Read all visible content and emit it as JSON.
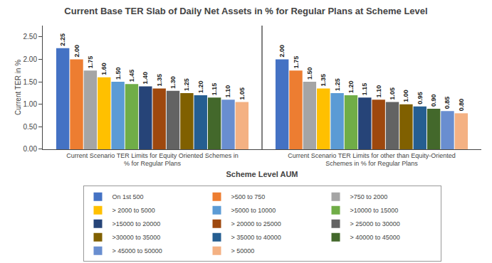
{
  "chart_data": {
    "type": "bar",
    "title": "Current Base TER Slab of Daily Net Assets in % for Regular Plans at Scheme Level",
    "xlabel": "Scheme Level AUM",
    "ylabel": "Current TER in %",
    "categories": [
      "Current Scenario TER Limits for Equity Oriented Schemes in\n% for Regular Plans",
      "Current Scenario TER Limits for other than Equity-Oriented\nSchemes in % for Regular Plans"
    ],
    "series": [
      {
        "name": "On 1st 500",
        "color": "#4472C4",
        "values": [
          2.25,
          2.0
        ],
        "value_labels": [
          "2.25",
          "2.00"
        ]
      },
      {
        "name": ">500 to 750",
        "color": "#ED7D31",
        "values": [
          2.0,
          1.75
        ],
        "value_labels": [
          "2.00",
          "1.75"
        ]
      },
      {
        "name": ">750 to 2000",
        "color": "#A5A5A5",
        "values": [
          1.75,
          1.5
        ],
        "value_labels": [
          "1.75",
          "1.50"
        ]
      },
      {
        "name": "> 2000 to 5000",
        "color": "#FFC000",
        "values": [
          1.6,
          1.35
        ],
        "value_labels": [
          "1.60",
          "1.35"
        ]
      },
      {
        "name": ">5000 to 10000",
        "color": "#5B9BD5",
        "values": [
          1.5,
          1.25
        ],
        "value_labels": [
          "1.50",
          "1.25"
        ]
      },
      {
        "name": ">10000 to 15000",
        "color": "#70AD47",
        "values": [
          1.45,
          1.2
        ],
        "value_labels": [
          "1.45",
          "1.20"
        ]
      },
      {
        "name": ">15000 to 20000",
        "color": "#264478",
        "values": [
          1.4,
          1.15
        ],
        "value_labels": [
          "1.40",
          "1.15"
        ]
      },
      {
        "name": "> 20000 to 25000",
        "color": "#9E480E",
        "values": [
          1.35,
          1.1
        ],
        "value_labels": [
          "1.35",
          "1.10"
        ]
      },
      {
        "name": "> 25000 to 30000",
        "color": "#636363",
        "values": [
          1.3,
          1.05
        ],
        "value_labels": [
          "1.30",
          "1.05"
        ]
      },
      {
        "name": ">30000 to 35000",
        "color": "#806000",
        "values": [
          1.25,
          1.0
        ],
        "value_labels": [
          "1.25",
          "1.00"
        ]
      },
      {
        "name": "> 35000 to 40000",
        "color": "#255E91",
        "values": [
          1.2,
          0.95
        ],
        "value_labels": [
          "1.20",
          "0.95"
        ]
      },
      {
        "name": "> 40000 to 45000",
        "color": "#43682B",
        "values": [
          1.15,
          0.9
        ],
        "value_labels": [
          "1.15",
          "0.90"
        ]
      },
      {
        "name": "> 45000 to 50000",
        "color": "#698ED0",
        "values": [
          1.1,
          0.85
        ],
        "value_labels": [
          "1.10",
          "0.85"
        ]
      },
      {
        "name": "> 50000",
        "color": "#F4B183",
        "values": [
          1.05,
          0.8
        ],
        "value_labels": [
          "1.05",
          "0.80"
        ]
      }
    ],
    "ylim": [
      0,
      2.75
    ],
    "yticks": [
      {
        "value": 0,
        "label": "0.00"
      },
      {
        "value": 0.5,
        "label": "0.50"
      },
      {
        "value": 1,
        "label": "1.00"
      },
      {
        "value": 1.5,
        "label": "1.50"
      },
      {
        "value": 2,
        "label": "2.00"
      },
      {
        "value": 2.5,
        "label": "2.50"
      }
    ],
    "data_labels": true,
    "legend": "bottom",
    "grid": false
  }
}
